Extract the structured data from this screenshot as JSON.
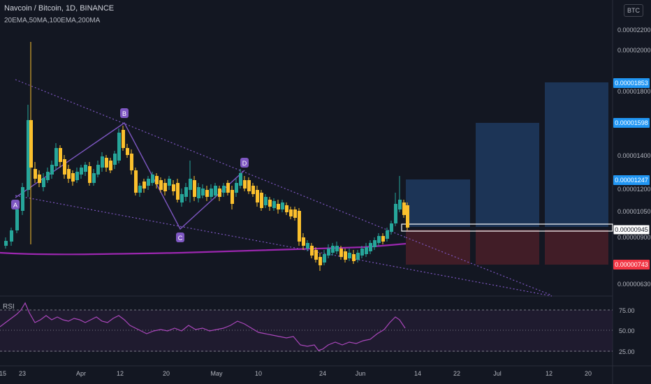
{
  "header": {
    "symbol_line": "Navcoin / Bitcoin, 1D, BINANCE",
    "indicators_line": "20EMA,50MA,100EMA,200MA",
    "currency_button": "BTC"
  },
  "price_axis": {
    "ticks": [
      "0.00002200",
      "0.00002000",
      "0.00001800",
      "0.00001400",
      "0.00001200",
      "0.00001050",
      "0.00000900",
      "0.00000630"
    ],
    "badges": [
      {
        "value": "0.00001853",
        "color": "#2196f3"
      },
      {
        "value": "0.00001598",
        "color": "#2196f3"
      },
      {
        "value": "0.00001247",
        "color": "#2196f3"
      },
      {
        "value": "0.00000945",
        "color": "#ffffff"
      },
      {
        "value": "0.00000743",
        "color": "#f23645"
      }
    ]
  },
  "pattern_labels": [
    "A",
    "B",
    "C",
    "D"
  ],
  "rsi": {
    "label": "RSI",
    "ticks": [
      "75.00",
      "50.00",
      "25.00"
    ]
  },
  "time_axis": {
    "ticks": [
      "15",
      "23",
      "Apr",
      "12",
      "20",
      "May",
      "10",
      "24",
      "Jun",
      "14",
      "22",
      "Jul",
      "12",
      "20"
    ]
  },
  "colors": {
    "background": "#131722",
    "bull": "#26a69a",
    "bear": "#fbc02d",
    "pattern": "#7e57c2",
    "ma200": "#9c27b0",
    "target_zone": "#1e3a5f",
    "stop_zone": "#4a1f28"
  }
}
